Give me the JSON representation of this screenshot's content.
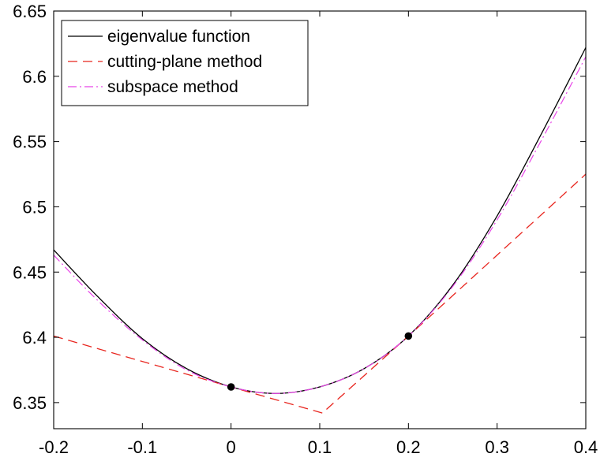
{
  "chart_data": {
    "type": "line",
    "xlim": [
      -0.2,
      0.4
    ],
    "ylim": [
      6.33,
      6.65
    ],
    "xticks": [
      "-0.2",
      "-0.1",
      "0",
      "0.1",
      "0.2",
      "0.3",
      "0.4"
    ],
    "xtick_values": [
      -0.2,
      -0.1,
      0,
      0.1,
      0.2,
      0.3,
      0.4
    ],
    "yticks": [
      "6.35",
      "6.4",
      "6.45",
      "6.5",
      "6.55",
      "6.6",
      "6.65"
    ],
    "ytick_values": [
      6.35,
      6.4,
      6.45,
      6.5,
      6.55,
      6.6,
      6.65
    ],
    "grid": false,
    "legend_position": "top-left",
    "series": [
      {
        "name": "eigenvalue function",
        "color": "#000000",
        "style": "solid",
        "x": [
          -0.2,
          -0.15,
          -0.1,
          -0.05,
          0,
          0.05,
          0.1,
          0.15,
          0.2,
          0.25,
          0.3,
          0.35,
          0.4
        ],
        "y": [
          6.467,
          6.431,
          6.399,
          6.376,
          6.362,
          6.357,
          6.362,
          6.376,
          6.401,
          6.44,
          6.493,
          6.556,
          6.622
        ]
      },
      {
        "name": "cutting-plane method",
        "color": "#e8261f",
        "style": "dashed",
        "x": [
          -0.2,
          0,
          0.103,
          0.2,
          0.4
        ],
        "y": [
          6.401,
          6.362,
          6.342,
          6.401,
          6.525
        ]
      },
      {
        "name": "subspace method",
        "color": "#e845e8",
        "style": "dashdot",
        "x": [
          -0.2,
          -0.15,
          -0.1,
          -0.05,
          0,
          0.05,
          0.1,
          0.15,
          0.2,
          0.25,
          0.3,
          0.35,
          0.4
        ],
        "y": [
          6.463,
          6.428,
          6.398,
          6.375,
          6.362,
          6.357,
          6.362,
          6.376,
          6.401,
          6.439,
          6.49,
          6.551,
          6.615
        ]
      }
    ],
    "points": [
      {
        "x": 0,
        "y": 6.362
      },
      {
        "x": 0.2,
        "y": 6.401
      }
    ]
  }
}
